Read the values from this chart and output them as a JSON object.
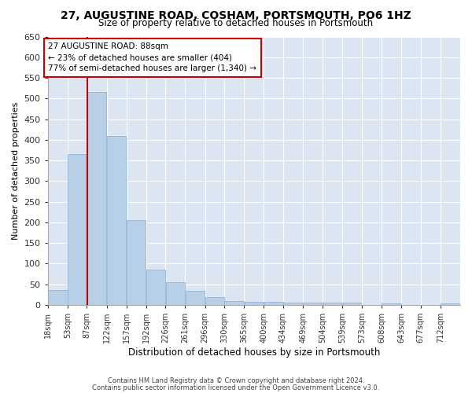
{
  "title": "27, AUGUSTINE ROAD, COSHAM, PORTSMOUTH, PO6 1HZ",
  "subtitle": "Size of property relative to detached houses in Portsmouth",
  "xlabel": "Distribution of detached houses by size in Portsmouth",
  "ylabel": "Number of detached properties",
  "bar_color": "#b8cfe8",
  "bar_edge_color": "#8aafd4",
  "bg_color": "#dce6f2",
  "grid_color": "#ffffff",
  "fig_bg_color": "#ffffff",
  "vline_x": 88,
  "vline_color": "#cc0000",
  "annotation_text": "27 AUGUSTINE ROAD: 88sqm\n← 23% of detached houses are smaller (404)\n77% of semi-detached houses are larger (1,340) →",
  "annotation_box_color": "#cc0000",
  "categories": [
    "18sqm",
    "53sqm",
    "87sqm",
    "122sqm",
    "157sqm",
    "192sqm",
    "226sqm",
    "261sqm",
    "296sqm",
    "330sqm",
    "365sqm",
    "400sqm",
    "434sqm",
    "469sqm",
    "504sqm",
    "539sqm",
    "573sqm",
    "608sqm",
    "643sqm",
    "677sqm",
    "712sqm"
  ],
  "values": [
    37,
    365,
    515,
    410,
    205,
    85,
    55,
    35,
    20,
    10,
    7,
    7,
    5,
    5,
    5,
    5,
    0,
    4,
    0,
    0,
    4
  ],
  "bin_edges": [
    18,
    53,
    87,
    122,
    157,
    192,
    226,
    261,
    296,
    330,
    365,
    400,
    434,
    469,
    504,
    539,
    573,
    608,
    643,
    677,
    712,
    747
  ],
  "ylim": [
    0,
    650
  ],
  "yticks": [
    0,
    50,
    100,
    150,
    200,
    250,
    300,
    350,
    400,
    450,
    500,
    550,
    600,
    650
  ],
  "footer1": "Contains HM Land Registry data © Crown copyright and database right 2024.",
  "footer2": "Contains public sector information licensed under the Open Government Licence v3.0."
}
